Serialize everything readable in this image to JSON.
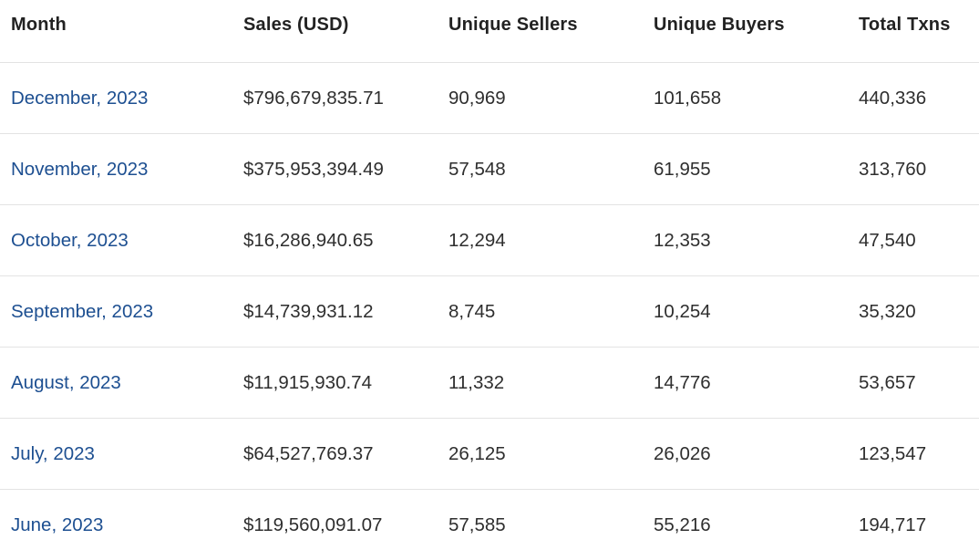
{
  "table": {
    "headers": {
      "month": "Month",
      "sales": "Sales (USD)",
      "sellers": "Unique Sellers",
      "buyers": "Unique Buyers",
      "total": "Total Txns"
    },
    "rows": [
      {
        "month": "December, 2023",
        "sales": "$796,679,835.71",
        "sellers": "90,969",
        "buyers": "101,658",
        "total": "440,336"
      },
      {
        "month": "November, 2023",
        "sales": "$375,953,394.49",
        "sellers": "57,548",
        "buyers": "61,955",
        "total": "313,760"
      },
      {
        "month": "October, 2023",
        "sales": "$16,286,940.65",
        "sellers": "12,294",
        "buyers": "12,353",
        "total": "47,540"
      },
      {
        "month": "September, 2023",
        "sales": "$14,739,931.12",
        "sellers": "8,745",
        "buyers": "10,254",
        "total": "35,320"
      },
      {
        "month": "August, 2023",
        "sales": "$11,915,930.74",
        "sellers": "11,332",
        "buyers": "14,776",
        "total": "53,657"
      },
      {
        "month": "July, 2023",
        "sales": "$64,527,769.37",
        "sellers": "26,125",
        "buyers": "26,026",
        "total": "123,547"
      },
      {
        "month": "June, 2023",
        "sales": "$119,560,091.07",
        "sellers": "57,585",
        "buyers": "55,216",
        "total": "194,717"
      }
    ]
  },
  "colors": {
    "link": "#1d4f91",
    "text": "#2e2e2e",
    "divider": "#e3e3e3"
  }
}
